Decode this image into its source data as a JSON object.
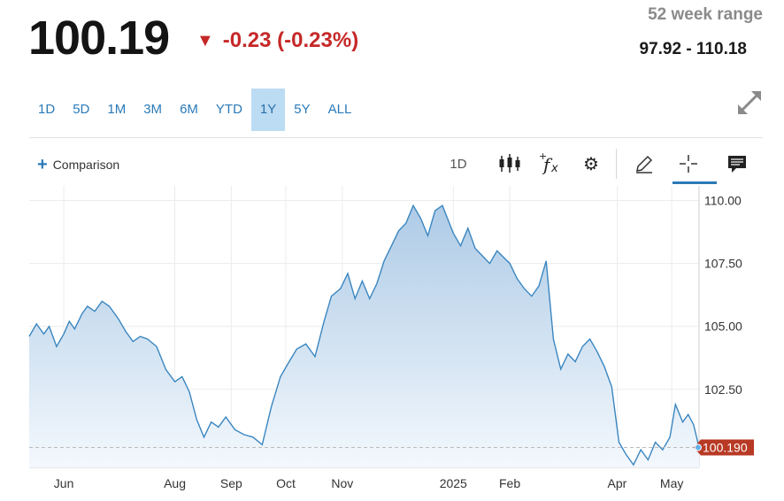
{
  "quote": {
    "price": "100.19",
    "change_text": "-0.23 (-0.23%)",
    "change_color": "#c62828",
    "down_arrow": "▼"
  },
  "range": {
    "label": "52 week range",
    "value": "97.92 - 110.18"
  },
  "periods": [
    {
      "label": "1D",
      "active": false
    },
    {
      "label": "5D",
      "active": false
    },
    {
      "label": "1M",
      "active": false
    },
    {
      "label": "3M",
      "active": false
    },
    {
      "label": "6M",
      "active": false
    },
    {
      "label": "YTD",
      "active": false
    },
    {
      "label": "1Y",
      "active": true
    },
    {
      "label": "5Y",
      "active": false
    },
    {
      "label": "ALL",
      "active": false
    }
  ],
  "toolbar": {
    "comparison_icon": "plus-icon",
    "comparison_label": "Comparison",
    "interval_label": "1D",
    "icons": [
      "candlestick-icon",
      "function-icon",
      "gear-icon",
      "pencil-icon",
      "crosshair-icon",
      "news-icon",
      "expand-icon"
    ]
  },
  "chart_data": {
    "type": "area",
    "title": "",
    "xlabel": "",
    "ylabel": "",
    "x_range": [
      "2024-05-13",
      "2025-05-16"
    ],
    "ylim": [
      99.4,
      110.3
    ],
    "y_ticks": [
      "102.50",
      "105.00",
      "107.50",
      "110.00"
    ],
    "x_tick_labels": [
      {
        "label": "Jun",
        "date": "2024-06-01"
      },
      {
        "label": "Aug",
        "date": "2024-08-01"
      },
      {
        "label": "Sep",
        "date": "2024-09-01"
      },
      {
        "label": "Oct",
        "date": "2024-10-01"
      },
      {
        "label": "Nov",
        "date": "2024-11-01"
      },
      {
        "label": "2025",
        "date": "2025-01-01"
      },
      {
        "label": "Feb",
        "date": "2025-02-01"
      },
      {
        "label": "Apr",
        "date": "2025-04-01"
      },
      {
        "label": "May",
        "date": "2025-05-01"
      }
    ],
    "last_value_label": "100.190",
    "last_value": 100.19,
    "line_color": "#3a86c0",
    "fill_color_top": "#aecbe6",
    "fill_color_bottom": "#f3f8fd",
    "marker_color": "#b83a24",
    "grid": true,
    "series": [
      {
        "x": [
          "2024-05-13",
          "2024-05-17",
          "2024-05-21",
          "2024-05-24",
          "2024-05-28",
          "2024-06-01",
          "2024-06-04",
          "2024-06-07",
          "2024-06-11",
          "2024-06-14",
          "2024-06-18",
          "2024-06-22",
          "2024-06-26",
          "2024-07-01",
          "2024-07-05",
          "2024-07-09",
          "2024-07-13",
          "2024-07-17",
          "2024-07-22",
          "2024-07-27",
          "2024-08-01",
          "2024-08-05",
          "2024-08-09",
          "2024-08-13",
          "2024-08-17",
          "2024-08-21",
          "2024-08-25",
          "2024-08-29",
          "2024-09-03",
          "2024-09-08",
          "2024-09-13",
          "2024-09-18",
          "2024-09-23",
          "2024-09-28",
          "2024-10-02",
          "2024-10-07",
          "2024-10-12",
          "2024-10-17",
          "2024-10-22",
          "2024-10-26",
          "2024-10-31",
          "2024-11-04",
          "2024-11-08",
          "2024-11-12",
          "2024-11-16",
          "2024-11-20",
          "2024-11-24",
          "2024-11-28",
          "2024-12-02",
          "2024-12-06",
          "2024-12-10",
          "2024-12-14",
          "2024-12-18",
          "2024-12-22",
          "2024-12-26",
          "2025-01-01",
          "2025-01-05",
          "2025-01-09",
          "2025-01-13",
          "2025-01-17",
          "2025-01-21",
          "2025-01-25",
          "2025-02-01",
          "2025-02-05",
          "2025-02-09",
          "2025-02-13",
          "2025-02-17",
          "2025-02-21",
          "2025-02-25",
          "2025-03-01",
          "2025-03-05",
          "2025-03-09",
          "2025-03-13",
          "2025-03-17",
          "2025-03-21",
          "2025-03-25",
          "2025-03-29",
          "2025-04-02",
          "2025-04-06",
          "2025-04-10",
          "2025-04-14",
          "2025-04-18",
          "2025-04-22",
          "2025-04-26",
          "2025-04-30",
          "2025-05-03",
          "2025-05-07",
          "2025-05-10",
          "2025-05-13",
          "2025-05-16"
        ],
        "y": [
          104.6,
          105.1,
          104.7,
          105.0,
          104.2,
          104.7,
          105.2,
          104.9,
          105.5,
          105.8,
          105.6,
          106.0,
          105.8,
          105.3,
          104.8,
          104.4,
          104.6,
          104.5,
          104.2,
          103.3,
          102.8,
          103.0,
          102.4,
          101.3,
          100.6,
          101.2,
          101.0,
          101.4,
          100.9,
          100.7,
          100.6,
          100.3,
          101.8,
          103.0,
          103.5,
          104.1,
          104.3,
          103.8,
          105.2,
          106.2,
          106.5,
          107.1,
          106.1,
          106.8,
          106.1,
          106.7,
          107.6,
          108.2,
          108.8,
          109.1,
          109.8,
          109.3,
          108.6,
          109.6,
          109.8,
          108.7,
          108.2,
          108.9,
          108.1,
          107.8,
          107.5,
          108.0,
          107.5,
          106.9,
          106.5,
          106.2,
          106.6,
          107.6,
          104.5,
          103.3,
          103.9,
          103.6,
          104.2,
          104.5,
          104.0,
          103.4,
          102.6,
          100.4,
          99.9,
          99.5,
          100.1,
          99.7,
          100.4,
          100.1,
          100.6,
          101.9,
          101.2,
          101.5,
          101.1,
          100.19
        ]
      }
    ]
  }
}
